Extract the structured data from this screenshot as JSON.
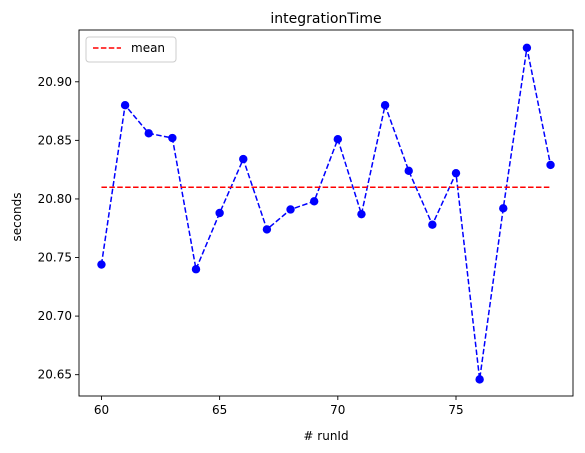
{
  "chart_data": {
    "type": "line",
    "title": "integrationTime",
    "xlabel": "# runId",
    "ylabel": "seconds",
    "xlim": [
      59.05,
      79.95
    ],
    "ylim": [
      20.6318,
      20.9442
    ],
    "x_ticks": [
      60,
      65,
      70,
      75
    ],
    "y_ticks": [
      20.65,
      20.7,
      20.75,
      20.8,
      20.85,
      20.9
    ],
    "x_tick_labels": [
      "60",
      "65",
      "70",
      "75"
    ],
    "y_tick_labels": [
      "20.65",
      "20.70",
      "20.75",
      "20.80",
      "20.85",
      "20.90"
    ],
    "legend": {
      "position": "top-left",
      "entries": [
        "mean"
      ]
    },
    "series": [
      {
        "style": "dashed line with circle markers",
        "color": "#0000ff",
        "x": [
          60,
          61,
          62,
          63,
          64,
          65,
          66,
          67,
          68,
          69,
          70,
          71,
          72,
          73,
          74,
          75,
          76,
          77,
          78,
          79
        ],
        "y": [
          20.744,
          20.88,
          20.856,
          20.852,
          20.74,
          20.788,
          20.834,
          20.774,
          20.791,
          20.798,
          20.851,
          20.787,
          20.88,
          20.824,
          20.778,
          20.822,
          20.646,
          20.792,
          20.929,
          20.829
        ]
      },
      {
        "name": "mean",
        "style": "dashed line",
        "color": "#ff0000",
        "x": [
          60,
          79
        ],
        "y": [
          20.81,
          20.81
        ]
      }
    ]
  }
}
